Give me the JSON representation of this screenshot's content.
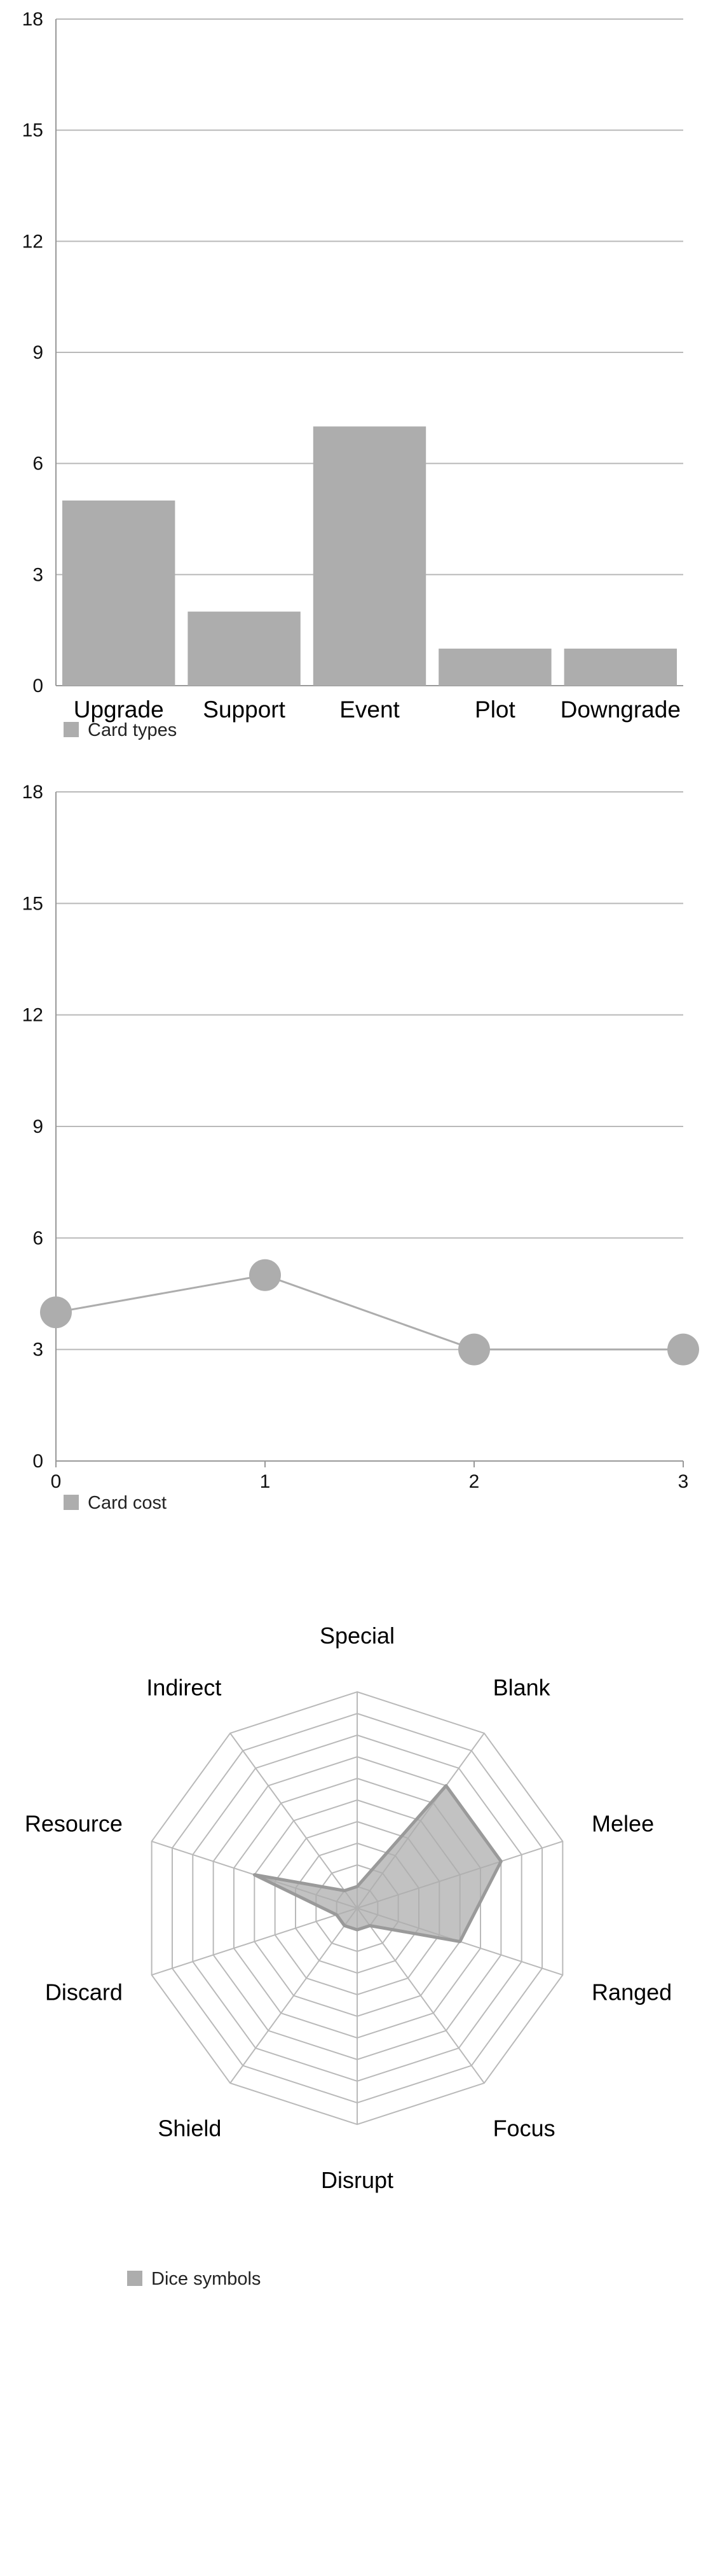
{
  "colors": {
    "mark": "#adadad",
    "grid": "#b9b9b9",
    "axis": "#999999",
    "radar_stroke": "#9a9a9a"
  },
  "chart_data": [
    {
      "type": "bar",
      "categories": [
        "Upgrade",
        "Support",
        "Event",
        "Plot",
        "Downgrade"
      ],
      "series": [
        {
          "name": "Card types",
          "values": [
            5,
            2,
            7,
            1,
            1
          ]
        }
      ],
      "y_ticks": [
        "0",
        "3",
        "6",
        "9",
        "12",
        "15",
        "18"
      ],
      "ylim": [
        0,
        18
      ],
      "grid": true,
      "legend": "bottom-left"
    },
    {
      "type": "line",
      "x": [
        0,
        1,
        2,
        3
      ],
      "x_ticks": [
        "0",
        "1",
        "2",
        "3"
      ],
      "series": [
        {
          "name": "Card cost",
          "values": [
            4,
            5,
            3,
            3
          ]
        }
      ],
      "y_ticks": [
        "0",
        "3",
        "6",
        "9",
        "12",
        "15",
        "18"
      ],
      "ylim": [
        0,
        18
      ],
      "xlim": [
        0,
        3
      ],
      "grid": true,
      "legend": "bottom-left"
    },
    {
      "type": "radar",
      "axes": [
        "Special",
        "Blank",
        "Melee",
        "Ranged",
        "Focus",
        "Disrupt",
        "Shield",
        "Discard",
        "Resource",
        "Indirect"
      ],
      "series": [
        {
          "name": "Dice symbols",
          "values": [
            1,
            7,
            7,
            5,
            1,
            1,
            1,
            1,
            5,
            1
          ]
        }
      ],
      "rmax": 10,
      "legend": "bottom-left"
    }
  ]
}
